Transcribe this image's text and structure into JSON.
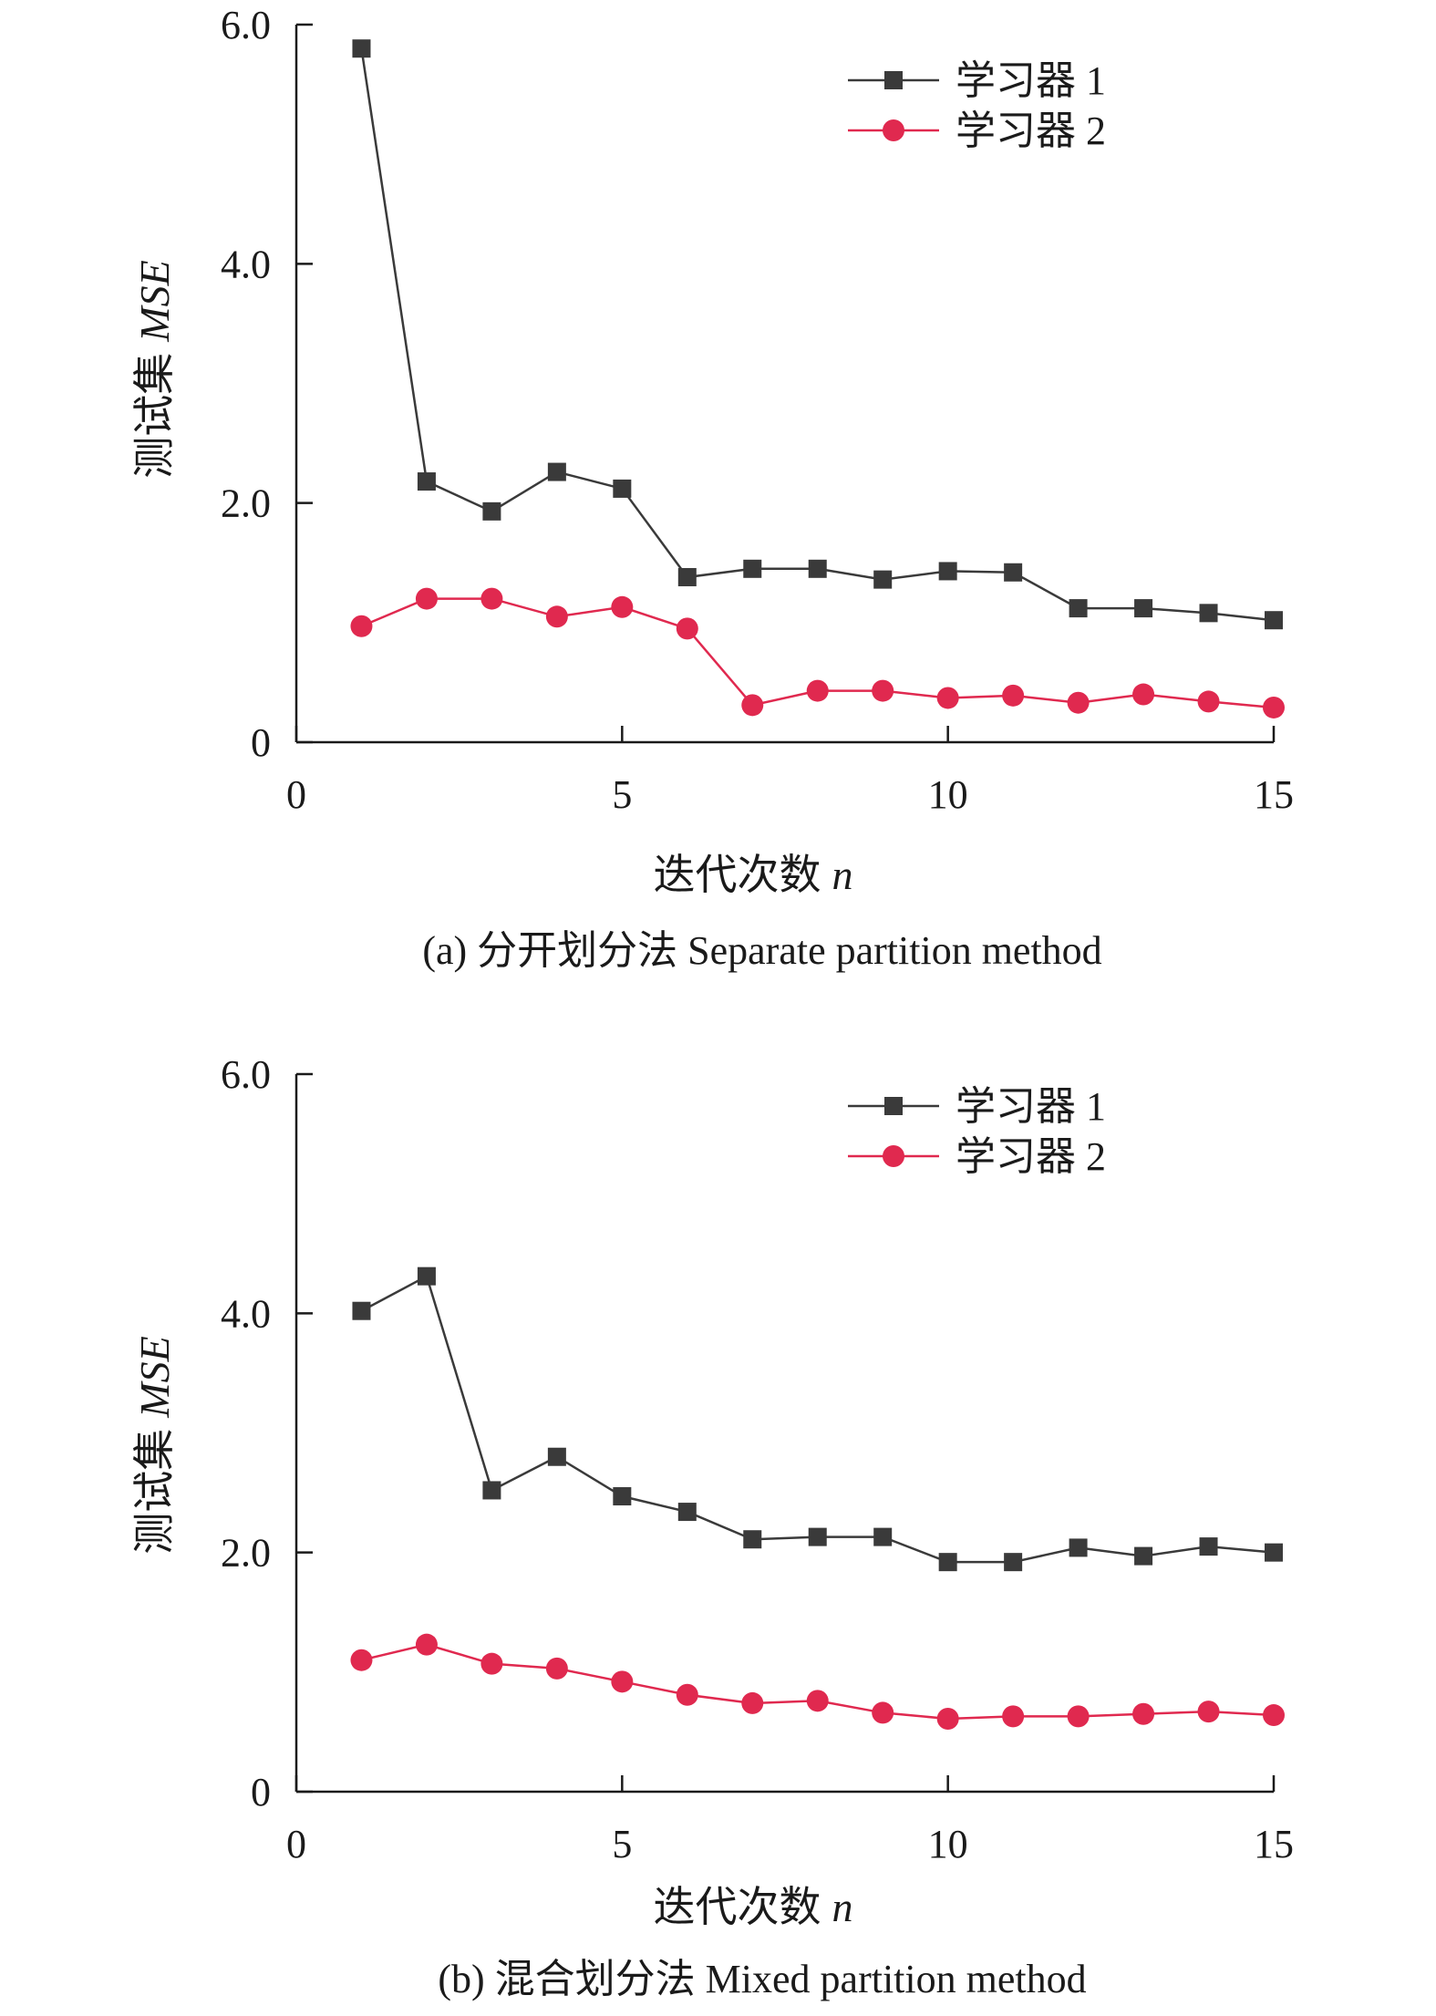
{
  "chart_data": [
    {
      "type": "line",
      "caption": "(a) 分开划分法 Separate partition method",
      "xlabel": "迭代次数",
      "xlabel_var": "n",
      "ylabel": "测试集",
      "ylabel_var": "MSE",
      "xlim": [
        0,
        15
      ],
      "ylim": [
        0,
        6
      ],
      "xticks": [
        0,
        5,
        10,
        15
      ],
      "xtick_labels": [
        "0",
        "5",
        "10",
        "15"
      ],
      "yticks": [
        0,
        2,
        4,
        6
      ],
      "ytick_labels": [
        "0",
        "2.0",
        "4.0",
        "6.0"
      ],
      "legend_position": "top-right",
      "x": [
        1,
        2,
        3,
        4,
        5,
        6,
        7,
        8,
        9,
        10,
        11,
        12,
        13,
        14,
        15
      ],
      "series": [
        {
          "name": "学习器 1",
          "marker": "square",
          "color": "#3a3a3a",
          "values": [
            5.8,
            2.18,
            1.93,
            2.26,
            2.12,
            1.38,
            1.45,
            1.45,
            1.36,
            1.43,
            1.42,
            1.12,
            1.12,
            1.08,
            1.02
          ]
        },
        {
          "name": "学习器 2",
          "marker": "circle",
          "color": "#e0294f",
          "values": [
            0.97,
            1.2,
            1.2,
            1.05,
            1.13,
            0.95,
            0.31,
            0.43,
            0.43,
            0.37,
            0.39,
            0.33,
            0.4,
            0.34,
            0.29
          ]
        }
      ]
    },
    {
      "type": "line",
      "caption": "(b) 混合划分法 Mixed partition method",
      "xlabel": "迭代次数",
      "xlabel_var": "n",
      "ylabel": "测试集",
      "ylabel_var": "MSE",
      "xlim": [
        0,
        15
      ],
      "ylim": [
        0,
        6
      ],
      "xticks": [
        0,
        5,
        10,
        15
      ],
      "xtick_labels": [
        "0",
        "5",
        "10",
        "15"
      ],
      "yticks": [
        0,
        2,
        4,
        6
      ],
      "ytick_labels": [
        "0",
        "2.0",
        "4.0",
        "6.0"
      ],
      "legend_position": "top-right",
      "x": [
        1,
        2,
        3,
        4,
        5,
        6,
        7,
        8,
        9,
        10,
        11,
        12,
        13,
        14,
        15
      ],
      "series": [
        {
          "name": "学习器 1",
          "marker": "square",
          "color": "#3a3a3a",
          "values": [
            4.02,
            4.31,
            2.52,
            2.8,
            2.47,
            2.34,
            2.11,
            2.13,
            2.13,
            1.92,
            1.92,
            2.04,
            1.97,
            2.05,
            2.0
          ]
        },
        {
          "name": "学习器 2",
          "marker": "circle",
          "color": "#e0294f",
          "values": [
            1.1,
            1.23,
            1.07,
            1.03,
            0.92,
            0.81,
            0.74,
            0.76,
            0.66,
            0.61,
            0.63,
            0.63,
            0.65,
            0.67,
            0.64
          ]
        }
      ]
    }
  ]
}
